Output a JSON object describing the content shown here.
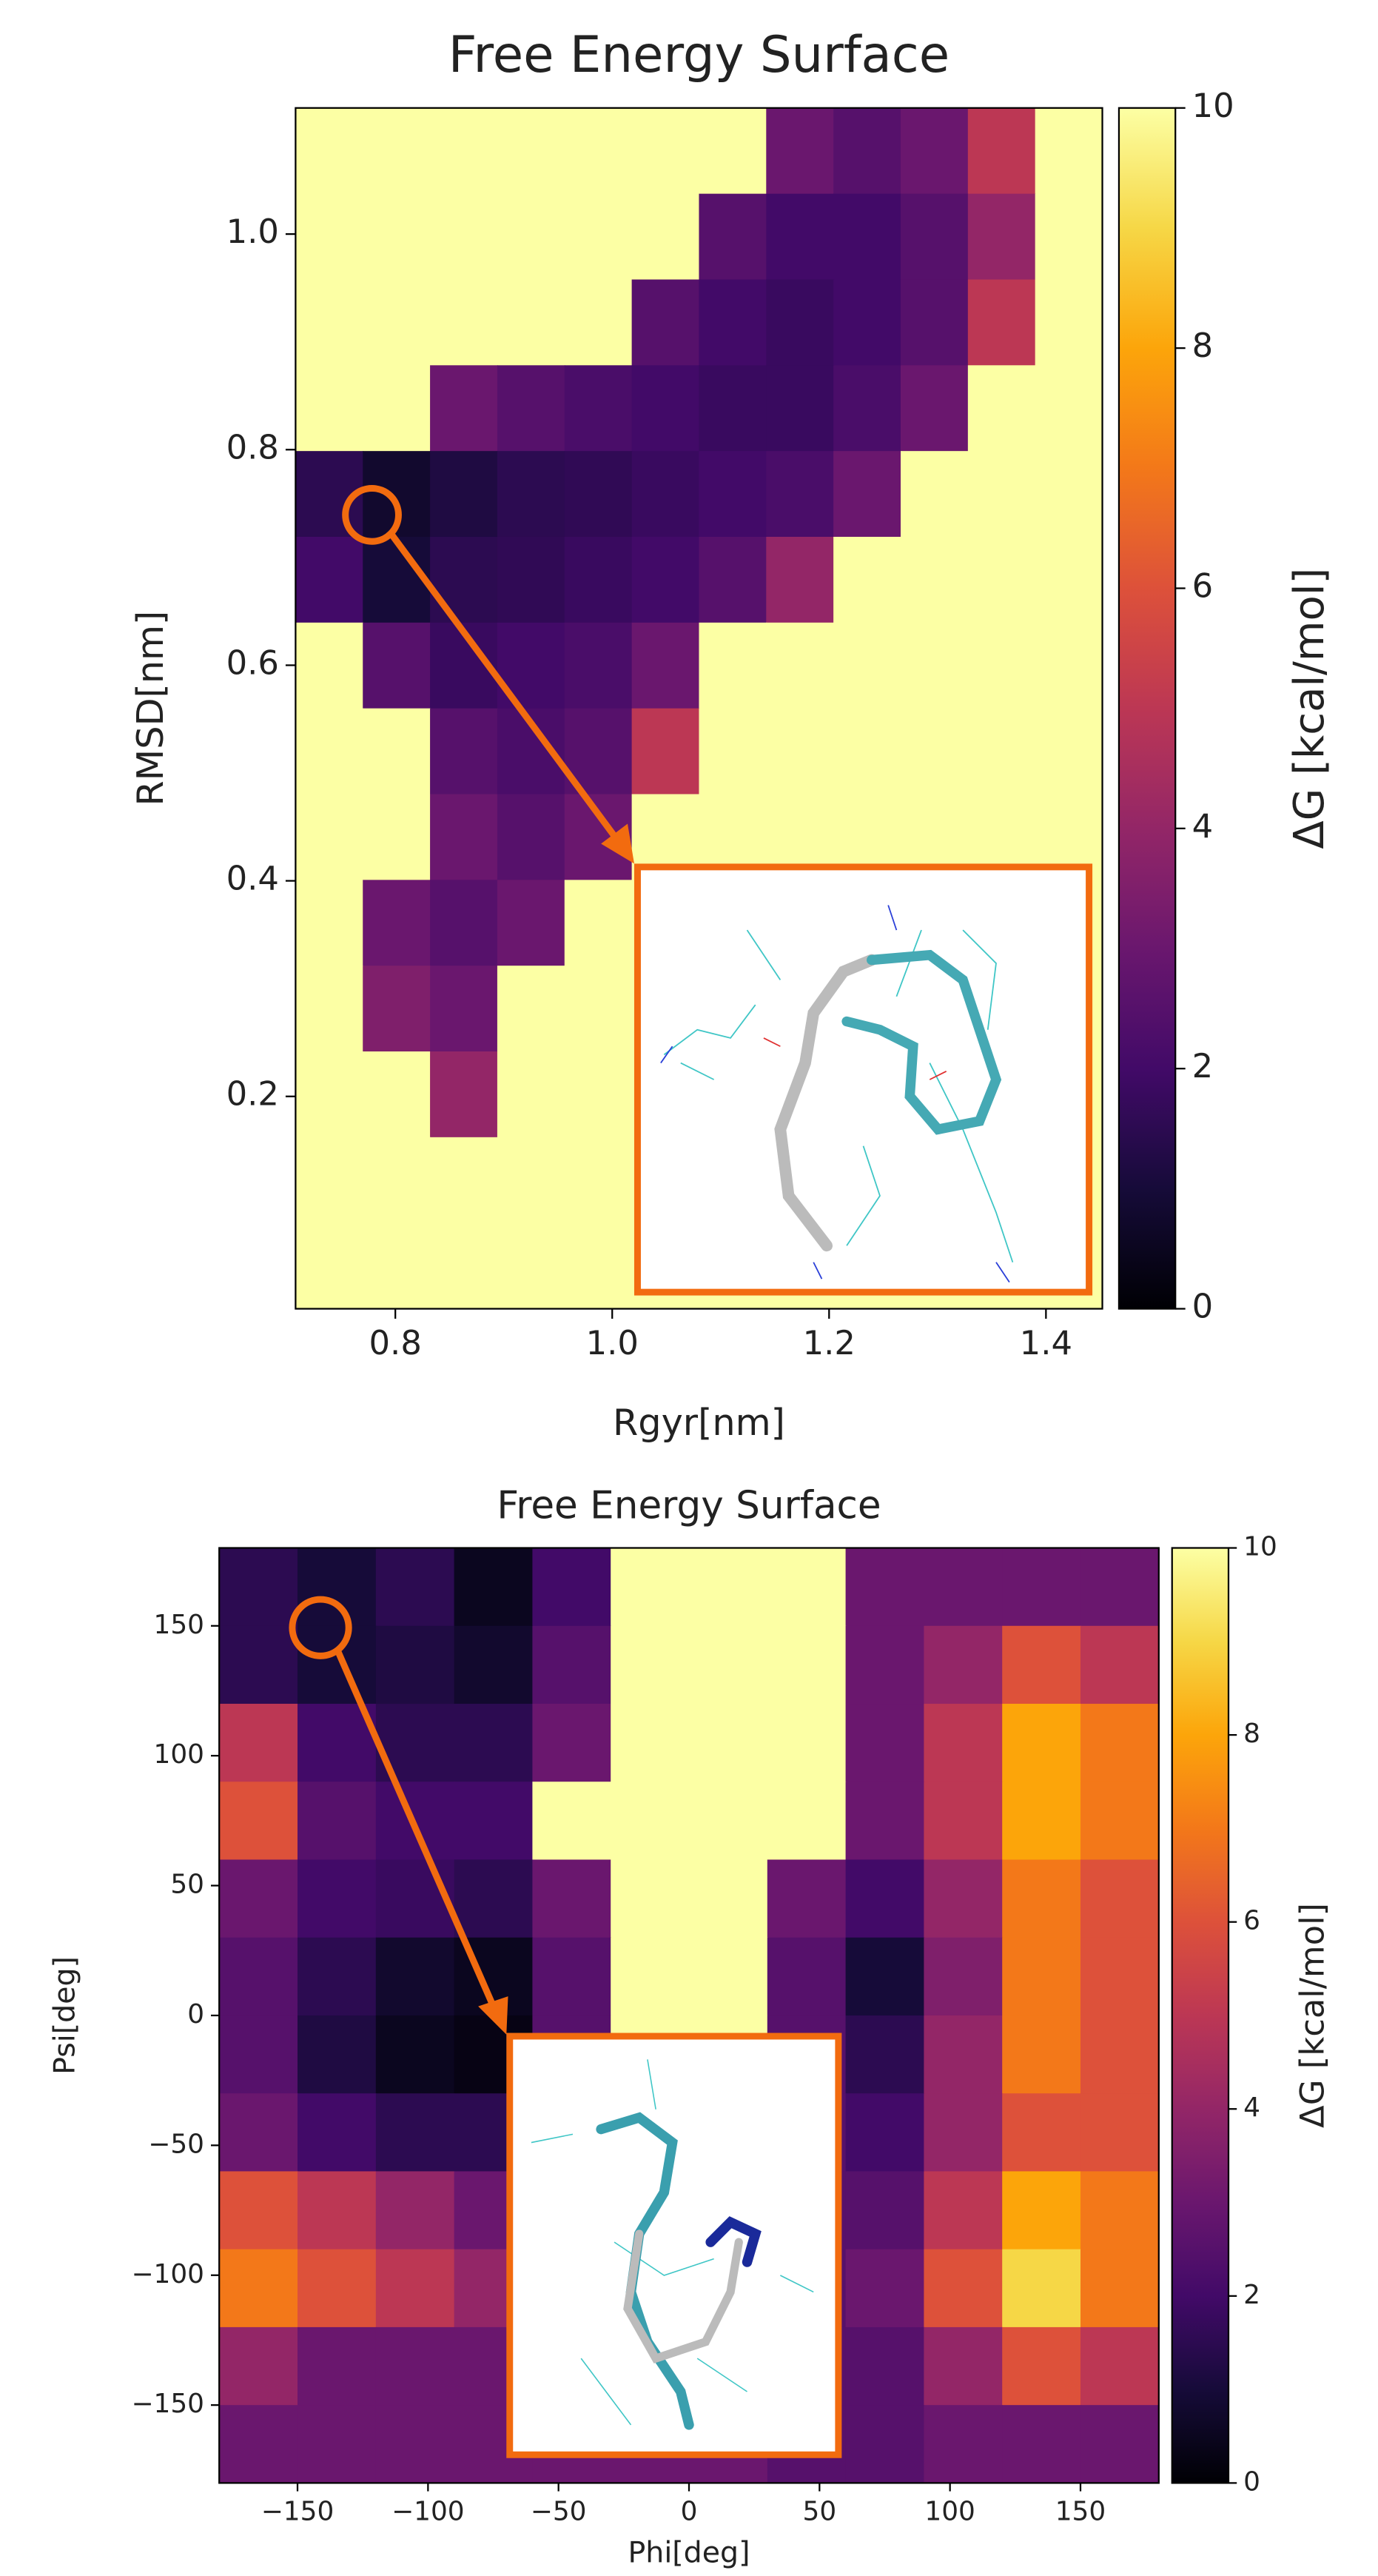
{
  "chart_data": [
    {
      "type": "heatmap",
      "title": "Free Energy Surface",
      "x_label": "Rgyr[nm]",
      "y_label": "RMSD[nm]",
      "xlim": [
        0.708,
        1.452
      ],
      "xticks": [
        0.8,
        {
          "value": 1,
          "label": "1.0"
        },
        1.2,
        1.4
      ],
      "ylim": [
        0.003,
        1.117
      ],
      "yticks": [
        0.2,
        0.4,
        0.6,
        0.8,
        {
          "value": 1,
          "label": "1.0"
        }
      ],
      "colormap": "inferno",
      "colorbar_label": "ΔG [kcal/mol]",
      "clim": [
        0,
        10
      ],
      "cticks": [
        0,
        2,
        4,
        6,
        8,
        10
      ],
      "z": [
        [
          10,
          10,
          10,
          10,
          10,
          10,
          10,
          3,
          2.5,
          3,
          5,
          10
        ],
        [
          10,
          10,
          10,
          10,
          10,
          10,
          2.5,
          2,
          2,
          2.5,
          4,
          10
        ],
        [
          10,
          10,
          10,
          10,
          10,
          2.5,
          2,
          1.8,
          2,
          2.5,
          5,
          10
        ],
        [
          10,
          10,
          3,
          2.5,
          2.2,
          2,
          1.8,
          1.8,
          2.2,
          3,
          10,
          10
        ],
        [
          1.5,
          0.8,
          1.2,
          1.5,
          1.6,
          1.8,
          2,
          2.2,
          3,
          10,
          10,
          10
        ],
        [
          2,
          1,
          1.5,
          1.6,
          1.8,
          2,
          2.5,
          4,
          10,
          10,
          10,
          10
        ],
        [
          10,
          2.5,
          1.8,
          2,
          2.2,
          3,
          10,
          10,
          10,
          10,
          10,
          10
        ],
        [
          10,
          10,
          2.5,
          2.2,
          2.5,
          5,
          10,
          10,
          10,
          10,
          10,
          10
        ],
        [
          10,
          10,
          3,
          2.5,
          3,
          10,
          10,
          10,
          10,
          10,
          10,
          10
        ],
        [
          10,
          3,
          2.5,
          3,
          10,
          10,
          10,
          10,
          10,
          10,
          10,
          10
        ],
        [
          10,
          3.5,
          3,
          10,
          10,
          10,
          10,
          10,
          10,
          10,
          10,
          10
        ],
        [
          10,
          10,
          4,
          10,
          10,
          10,
          10,
          10,
          10,
          10,
          10,
          10
        ],
        [
          10,
          10,
          10,
          10,
          10,
          10,
          10,
          10,
          10,
          10,
          10,
          10
        ],
        [
          10,
          10,
          10,
          10,
          10,
          10,
          10,
          10,
          10,
          10,
          10,
          10
        ]
      ]
    },
    {
      "type": "heatmap",
      "title": "Free Energy Surface",
      "x_label": "Phi[deg]",
      "y_label": "Psi[deg]",
      "xlim": [
        -180,
        180
      ],
      "xticks": [
        {
          "value": -150,
          "label": "−150"
        },
        {
          "value": -100,
          "label": "−100"
        },
        {
          "value": -50,
          "label": "−50"
        },
        0,
        50,
        100,
        150
      ],
      "ylim": [
        -180,
        180
      ],
      "yticks": [
        {
          "value": -150,
          "label": "−150"
        },
        {
          "value": -100,
          "label": "−100"
        },
        {
          "value": -50,
          "label": "−50"
        },
        0,
        50,
        100,
        150
      ],
      "colormap": "inferno",
      "colorbar_label": "ΔG [kcal/mol]",
      "clim": [
        0,
        10
      ],
      "cticks": [
        0,
        2,
        4,
        6,
        8,
        10
      ],
      "z": [
        [
          1.5,
          1,
          1.5,
          0.5,
          2,
          10,
          10,
          10,
          3,
          3,
          3,
          3
        ],
        [
          1.5,
          1,
          1.2,
          0.8,
          2.5,
          10,
          10,
          10,
          3,
          4,
          6,
          5
        ],
        [
          5,
          2,
          1.5,
          1.5,
          3,
          10,
          10,
          10,
          3,
          5,
          8,
          7
        ],
        [
          6,
          2.5,
          2,
          2,
          10,
          10,
          10,
          10,
          3,
          5,
          8,
          7
        ],
        [
          3,
          2,
          1.8,
          1.5,
          3,
          10,
          10,
          3,
          2,
          4,
          7,
          6
        ],
        [
          2.5,
          1.5,
          0.8,
          0.5,
          2.5,
          10,
          10,
          2.5,
          1,
          3.5,
          7,
          6
        ],
        [
          2.5,
          1.2,
          0.5,
          0.3,
          2.5,
          10,
          10,
          2.5,
          1.5,
          4,
          7,
          6
        ],
        [
          3,
          2,
          1.5,
          1.5,
          2.5,
          3,
          3,
          2.5,
          2,
          4,
          6,
          6
        ],
        [
          6,
          5,
          4,
          3,
          2.5,
          2.5,
          2.5,
          2.5,
          2.5,
          5,
          8,
          7
        ],
        [
          7,
          6,
          5,
          4,
          3,
          3,
          3,
          2.5,
          3,
          6,
          9,
          7
        ],
        [
          4,
          3,
          3,
          3,
          3,
          3,
          3,
          2.5,
          2.5,
          4,
          6,
          5
        ],
        [
          3,
          3,
          3,
          3,
          3,
          3,
          3,
          2.5,
          2.5,
          3,
          3,
          3
        ]
      ]
    }
  ]
}
